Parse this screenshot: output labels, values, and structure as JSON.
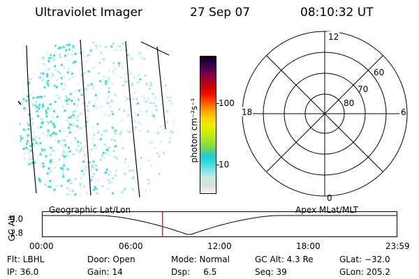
{
  "header": {
    "instrument": "Ultraviolet Imager",
    "date": "27 Sep 07",
    "time": "08:10:32 UT"
  },
  "colorbar": {
    "unit_label": "photon cm⁻²s⁻¹",
    "tick_labels": [
      "100",
      "10"
    ],
    "colors": [
      "#f4f4f4",
      "#dddddd",
      "#c4ecec",
      "#7fe6e6",
      "#33dddd",
      "#22cccc",
      "#7ed84c",
      "#a8e52d",
      "#ccee00",
      "#eeee00",
      "#ffcc00",
      "#ff9900",
      "#ff5500",
      "#ee1100",
      "#cc0000",
      "#a00033",
      "#660055",
      "#330044",
      "#110022"
    ]
  },
  "polar_grid": {
    "mlt_labels": {
      "top": "12",
      "left": "18",
      "right": "6",
      "bottom": "0"
    },
    "lat_labels": [
      "60",
      "70",
      "80"
    ]
  },
  "timeline": {
    "left_label": "Geographic Lat/Lon",
    "right_label": "Apex MLat/MLT",
    "y_axis_label": "GC Alt",
    "y_ticks": [
      "9.0",
      "1.8"
    ],
    "x_ticks": [
      "00:00",
      "06:00",
      "12:00",
      "18:00",
      "23:59"
    ],
    "current_time_fraction": 0.34,
    "marker_color": "#cc0000"
  },
  "status": {
    "flt": "Flt: LBHL",
    "ip": "IP: 36.0",
    "door": "Door: Open",
    "gain": "Gain: 14",
    "mode": "Mode: Normal",
    "dsp": "Dsp:     6.5",
    "gc_alt": "GC Alt: 4.3 Re",
    "seq": "Seq: 39",
    "glat": "GLat: −32.0",
    "glon": "GLon: 205.2"
  }
}
